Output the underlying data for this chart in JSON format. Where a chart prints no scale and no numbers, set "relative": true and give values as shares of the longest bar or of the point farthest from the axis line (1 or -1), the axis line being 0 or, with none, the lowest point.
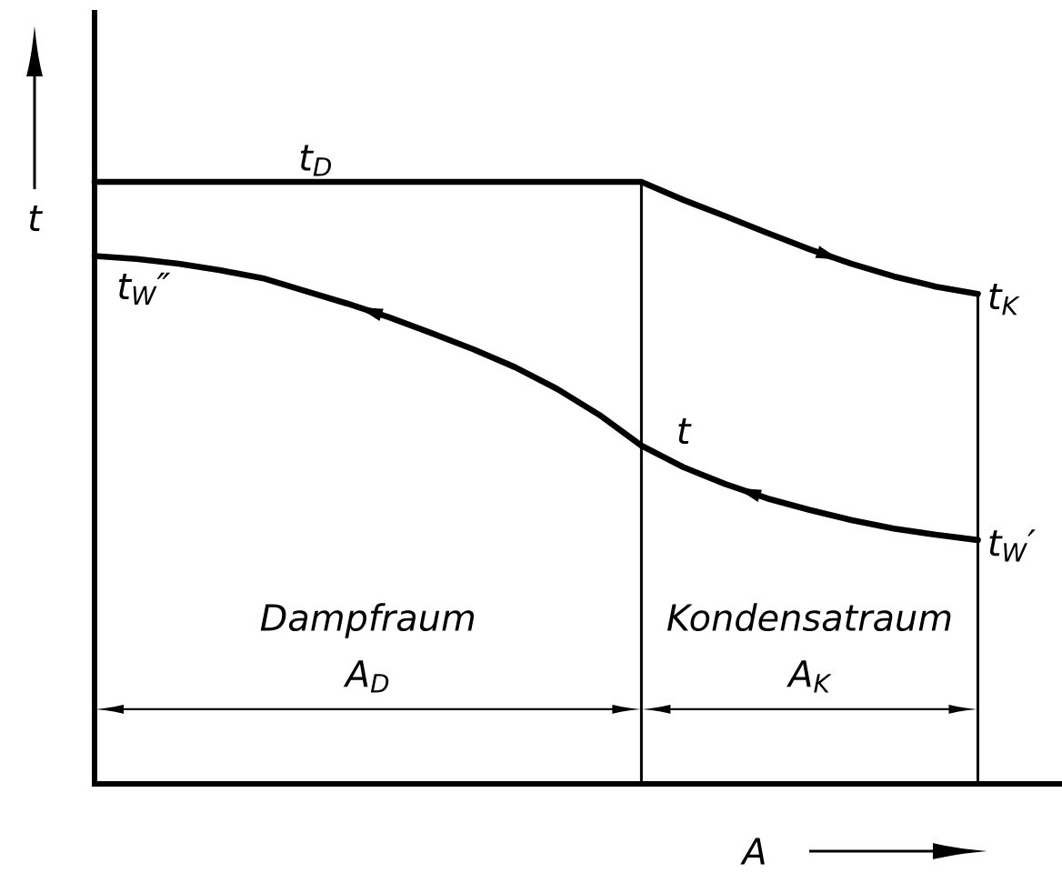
{
  "chart_data": {
    "type": "line",
    "relative": true,
    "xlabel": "A",
    "ylabel": "t",
    "categories": [
      null,
      null,
      null,
      null,
      null,
      null,
      null,
      null,
      null,
      null,
      null,
      null,
      null,
      null,
      null,
      null,
      null,
      null,
      null,
      null,
      null,
      null
    ],
    "series": [
      {
        "color": "#000000",
        "values": [
          1,
          1,
          1,
          1,
          1,
          1,
          1,
          1,
          1,
          1,
          1,
          1,
          1,
          1,
          0.97,
          0.943,
          0.915,
          0.888,
          0.864,
          0.843,
          0.826,
          0.814
        ]
      },
      {
        "color": "#000000",
        "values": [
          0.877,
          0.872,
          0.864,
          0.853,
          0.84,
          0.819,
          0.798,
          0.775,
          0.749,
          0.722,
          0.692,
          0.656,
          0.613,
          0.562,
          0.526,
          0.498,
          0.474,
          0.455,
          0.438,
          0.424,
          0.414,
          0.405
        ]
      }
    ],
    "annotations": [
      "t$_{D}$",
      "t$_{W}$″",
      "t$_{K}$",
      "t",
      "t$_{W}$′",
      "Dampfraum A$_{D}$",
      "Kondensatraum A$_{K}$"
    ]
  }
}
